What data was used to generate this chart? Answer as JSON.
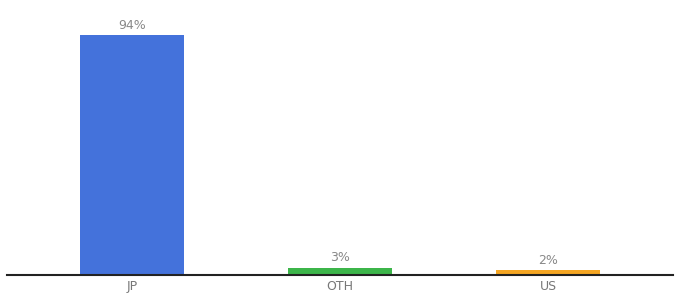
{
  "categories": [
    "JP",
    "OTH",
    "US"
  ],
  "values": [
    94,
    3,
    2
  ],
  "bar_colors": [
    "#4472db",
    "#3cb54a",
    "#f5a623"
  ],
  "labels": [
    "94%",
    "3%",
    "2%"
  ],
  "ylim": [
    0,
    105
  ],
  "background_color": "#ffffff",
  "bar_width": 0.5,
  "label_fontsize": 9,
  "tick_fontsize": 9,
  "label_color": "#888888",
  "tick_color": "#777777",
  "spine_color": "#222222"
}
